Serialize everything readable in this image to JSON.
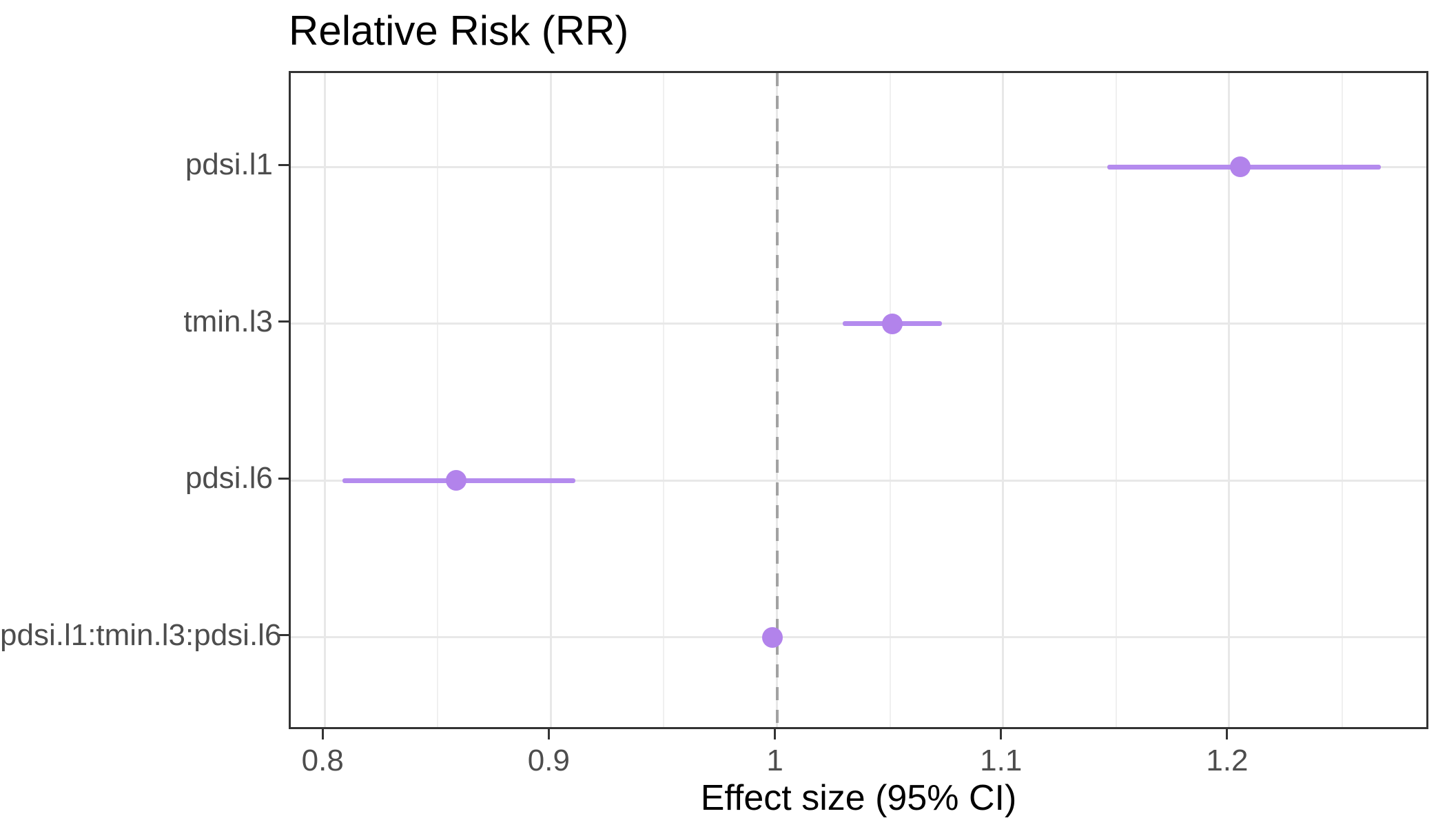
{
  "chart_data": {
    "type": "scatter",
    "subtype": "forest-plot-pointrange",
    "title": "Relative Risk (RR)",
    "xlabel": "Effect size (95% CI)",
    "ylabel": "",
    "legend": "none",
    "grid": "major-and-minor-vertical, major-horizontal",
    "categories": [
      "pdsi.l1",
      "tmin.l3",
      "pdsi.l6",
      "pdsi.l1:tmin.l3:pdsi.l6"
    ],
    "points": [
      {
        "label": "pdsi.l1",
        "estimate": 1.205,
        "ci_low": 1.146,
        "ci_high": 1.267
      },
      {
        "label": "tmin.l3",
        "estimate": 1.051,
        "ci_low": 1.029,
        "ci_high": 1.073
      },
      {
        "label": "pdsi.l6",
        "estimate": 0.858,
        "ci_low": 0.808,
        "ci_high": 0.911
      },
      {
        "label": "pdsi.l1:tmin.l3:pdsi.l6",
        "estimate": 0.998,
        "ci_low": 0.994,
        "ci_high": 1.002
      }
    ],
    "x_ticks_major": [
      0.8,
      0.9,
      1,
      1.1,
      1.2
    ],
    "x_tick_labels": [
      "0.8",
      "0.9",
      "1",
      "1.1",
      "1.2"
    ],
    "x_ticks_minor": [
      0.85,
      0.95,
      1.05,
      1.15,
      1.25
    ],
    "xlim": [
      0.785,
      1.289
    ],
    "reference_line": 1,
    "colors": {
      "point": "#b283eb",
      "ci_line": "#b48bee",
      "reference_line": "#a2a2a2",
      "grid_major": "#e8e8e8",
      "grid_minor": "#f0f0f0",
      "panel_border": "#333333",
      "axis_text": "#4d4d4d",
      "title_text": "#000000"
    }
  }
}
